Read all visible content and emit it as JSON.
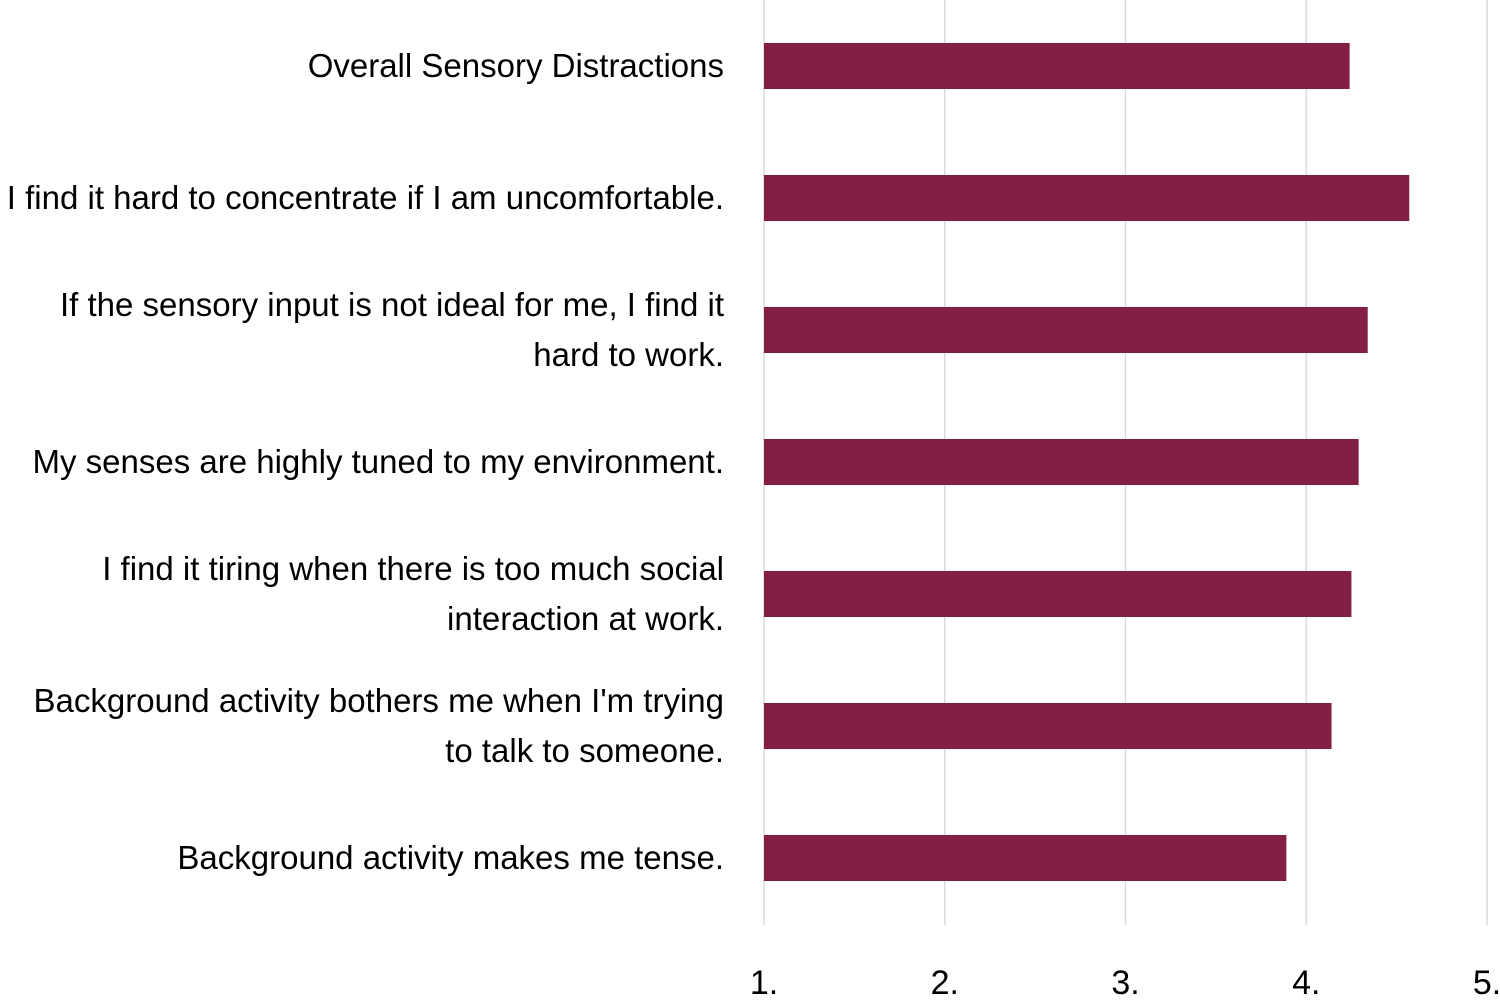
{
  "chart_data": {
    "type": "bar",
    "orientation": "horizontal",
    "categories": [
      "Overall Sensory Distractions",
      "I find it hard to concentrate if I am uncomfortable.",
      "If the sensory input is not ideal for me, I find it hard to work.",
      "My senses are highly tuned to my environment.",
      "I find it tiring when there is too much social interaction at work.",
      "Background activity bothers me when I'm trying to talk to someone.",
      "Background activity makes me tense."
    ],
    "values": [
      4.24,
      4.57,
      4.34,
      4.29,
      4.25,
      4.14,
      3.89
    ],
    "color": "#831f44",
    "xlim": [
      1,
      5
    ],
    "xticks": [
      {
        "value": 1,
        "label": "1."
      },
      {
        "value": 2,
        "label": "2."
      },
      {
        "value": 3,
        "label": "3."
      },
      {
        "value": 4,
        "label": "4."
      },
      {
        "value": 5,
        "label": "5."
      }
    ],
    "grid": true
  }
}
